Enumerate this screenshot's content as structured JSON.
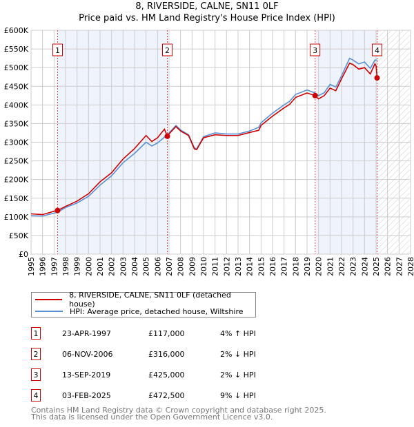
{
  "chart_data": {
    "type": "line",
    "title": "8, RIVERSIDE, CALNE, SN11 0LF",
    "subtitle": "Price paid vs. HM Land Registry's House Price Index (HPI)",
    "xlim": [
      1995,
      2028
    ],
    "ylim": [
      0,
      600000
    ],
    "yticks": [
      0,
      50000,
      100000,
      150000,
      200000,
      250000,
      300000,
      350000,
      400000,
      450000,
      500000,
      550000,
      600000
    ],
    "ytick_labels": [
      "£0",
      "£50K",
      "£100K",
      "£150K",
      "£200K",
      "£250K",
      "£300K",
      "£350K",
      "£400K",
      "£450K",
      "£500K",
      "£550K",
      "£600K"
    ],
    "xticks": [
      1995,
      1996,
      1997,
      1998,
      1999,
      2000,
      2001,
      2002,
      2003,
      2004,
      2005,
      2006,
      2007,
      2008,
      2009,
      2010,
      2011,
      2012,
      2013,
      2014,
      2015,
      2016,
      2017,
      2018,
      2019,
      2020,
      2021,
      2022,
      2023,
      2024,
      2025,
      2026,
      2027,
      2028
    ],
    "grid": true,
    "series": [
      {
        "name": "8, RIVERSIDE, CALNE, SN11 0LF (detached house)",
        "color": "#cc0000",
        "x": [
          1995,
          1996,
          1997,
          1997.3,
          1998,
          1999,
          2000,
          2001,
          2002,
          2003,
          2004,
          2005,
          2005.5,
          2006,
          2006.6,
          2006.85,
          2007,
          2007.6,
          2008,
          2008.7,
          2009.2,
          2009.4,
          2010,
          2011,
          2012,
          2013,
          2014,
          2014.8,
          2015,
          2016,
          2017,
          2017.5,
          2018,
          2019,
          2019.7,
          2020,
          2020.5,
          2021,
          2021.5,
          2022,
          2022.7,
          2023,
          2023.5,
          2024,
          2024.5,
          2024.9,
          2025.0,
          2025.1
        ],
        "y": [
          108,
          106,
          115,
          117,
          128,
          142,
          162,
          194,
          218,
          255,
          283,
          318,
          302,
          312,
          335,
          316,
          322,
          342,
          330,
          318,
          282,
          280,
          312,
          320,
          318,
          318,
          326,
          332,
          345,
          370,
          392,
          402,
          420,
          432,
          425,
          416,
          425,
          445,
          438,
          470,
          512,
          508,
          496,
          500,
          483,
          510,
          505,
          472.5
        ]
      },
      {
        "name": "HPI: Average price, detached house, Wiltshire",
        "color": "#5b8fd4",
        "x": [
          1995,
          1996,
          1997,
          1997.3,
          1998,
          1999,
          2000,
          2001,
          2002,
          2003,
          2004,
          2005,
          2005.5,
          2006,
          2006.85,
          2007,
          2007.6,
          2008,
          2008.7,
          2009.2,
          2009.4,
          2010,
          2011,
          2012,
          2013,
          2014,
          2014.8,
          2015,
          2016,
          2017,
          2017.5,
          2018,
          2019,
          2019.7,
          2020,
          2020.5,
          2021,
          2021.5,
          2022,
          2022.7,
          2023,
          2023.5,
          2024,
          2024.5,
          2024.9,
          2025.1
        ],
        "y": [
          103,
          102,
          110,
          112,
          125,
          137,
          155,
          185,
          210,
          245,
          270,
          300,
          290,
          298,
          320,
          325,
          345,
          333,
          320,
          285,
          282,
          315,
          325,
          322,
          322,
          330,
          340,
          352,
          378,
          400,
          410,
          428,
          440,
          432,
          425,
          433,
          455,
          448,
          478,
          525,
          520,
          510,
          515,
          498,
          520,
          520
        ]
      }
    ],
    "y_units": "thousands GBP",
    "sales": [
      {
        "n": "1",
        "x": 1997.31,
        "price": 117000,
        "date": "23-APR-1997",
        "price_label": "£117,000",
        "hpi": "4% ↑ HPI"
      },
      {
        "n": "2",
        "x": 2006.85,
        "price": 316000,
        "date": "06-NOV-2006",
        "price_label": "£316,000",
        "hpi": "2% ↓ HPI"
      },
      {
        "n": "3",
        "x": 2019.7,
        "price": 425000,
        "date": "13-SEP-2019",
        "price_label": "£425,000",
        "hpi": "2% ↓ HPI"
      },
      {
        "n": "4",
        "x": 2025.09,
        "price": 472500,
        "date": "03-FEB-2025",
        "price_label": "£472,500",
        "hpi": "9% ↓ HPI"
      }
    ],
    "shaded": [
      [
        1997.31,
        2006.85
      ],
      [
        2019.7,
        2025.09
      ]
    ],
    "forecast_from": 2025.09
  },
  "legend": {
    "red": "8, RIVERSIDE, CALNE, SN11 0LF (detached house)",
    "blue": "HPI: Average price, detached house, Wiltshire"
  },
  "footer": {
    "line1": "Contains HM Land Registry data © Crown copyright and database right 2025.",
    "line2": "This data is licensed under the Open Government Licence v3.0."
  }
}
